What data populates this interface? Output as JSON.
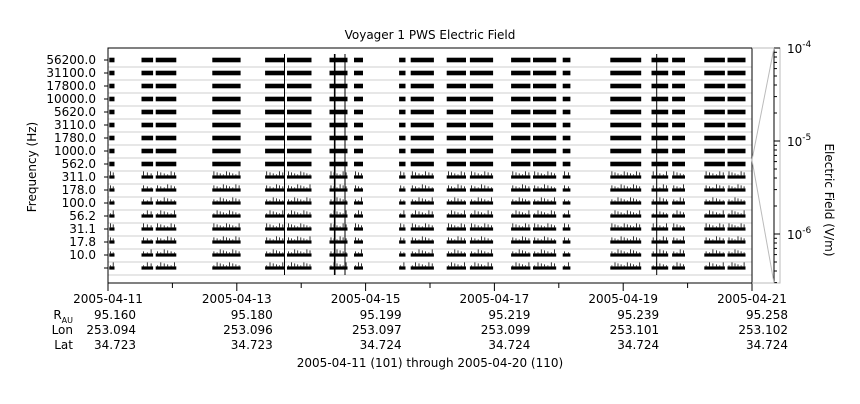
{
  "chart_data": {
    "type": "heatmap",
    "title": "Voyager 1 PWS Electric Field",
    "ylabel": "Frequency (Hz)",
    "colorbar_label": "Electric Field (V/m)",
    "colorbar_ticks": [
      {
        "base": "10",
        "exp": "-4",
        "value": 0.0001
      },
      {
        "base": "10",
        "exp": "-5",
        "value": 1e-05
      },
      {
        "base": "10",
        "exp": "-6",
        "value": 1e-06
      }
    ],
    "colorbar_scale": "log",
    "channels": [
      "56200.0",
      "31100.0",
      "17800.0",
      "10000.0",
      "5620.0",
      "3110.0",
      "1780.0",
      "1000.0",
      "562.0",
      "311.0",
      "178.0",
      "100.0",
      "56.2",
      "31.1",
      "17.8",
      "10.0"
    ],
    "x_dates": [
      "2005-04-11",
      "2005-04-13",
      "2005-04-15",
      "2005-04-17",
      "2005-04-19",
      "2005-04-21"
    ],
    "x_range_days": [
      0,
      10
    ],
    "data_segments_days": [
      [
        0.02,
        0.1
      ],
      [
        0.52,
        0.7
      ],
      [
        0.74,
        1.06
      ],
      [
        1.62,
        2.06
      ],
      [
        2.44,
        2.74
      ],
      [
        2.78,
        3.16
      ],
      [
        3.44,
        3.72
      ],
      [
        3.82,
        3.96
      ],
      [
        4.52,
        4.62
      ],
      [
        4.7,
        5.06
      ],
      [
        5.26,
        5.56
      ],
      [
        5.62,
        5.98
      ],
      [
        6.26,
        6.56
      ],
      [
        6.6,
        6.96
      ],
      [
        7.06,
        7.18
      ],
      [
        7.8,
        8.28
      ],
      [
        8.44,
        8.7
      ],
      [
        8.76,
        8.96
      ],
      [
        9.26,
        9.58
      ],
      [
        9.62,
        9.9
      ]
    ],
    "bursts_days": [
      3.52,
      3.68,
      8.52,
      2.74
    ],
    "ephemeris": {
      "labels": {
        "rau_main": "R",
        "rau_sub": "AU",
        "lon": "Lon",
        "lat": "Lat"
      },
      "rau": [
        "95.160",
        "95.180",
        "95.199",
        "95.219",
        "95.239",
        "95.258"
      ],
      "lon": [
        "253.094",
        "253.096",
        "253.097",
        "253.099",
        "253.101",
        "253.102"
      ],
      "lat": [
        "34.723",
        "34.723",
        "34.724",
        "34.724",
        "34.724",
        "34.724"
      ]
    },
    "footer": "2005-04-11 (101) through 2005-04-20 (110)"
  }
}
